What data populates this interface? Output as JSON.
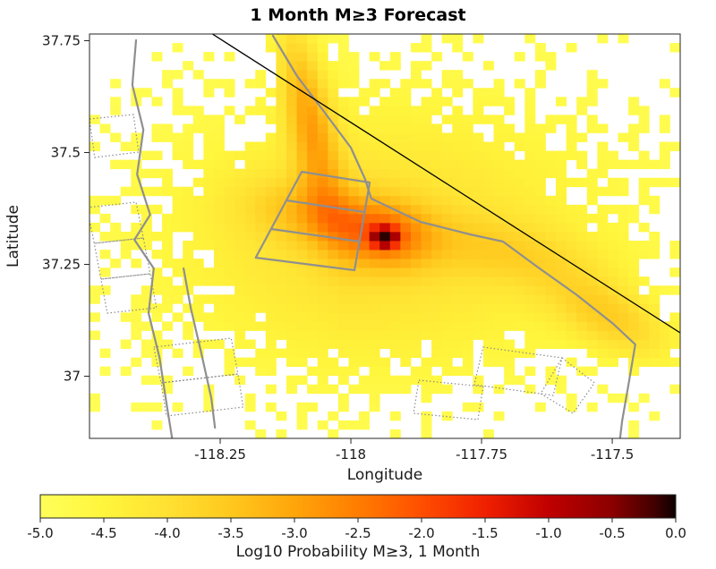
{
  "title": "1 Month M≥3 Forecast",
  "axes": {
    "xlabel": "Longitude",
    "ylabel": "Latitude",
    "x_range": [
      -118.5,
      -117.37
    ],
    "y_range": [
      36.861,
      37.765
    ],
    "x_ticks": [
      {
        "value": -118.25,
        "label": "-118.25"
      },
      {
        "value": -118.0,
        "label": "-118"
      },
      {
        "value": -117.75,
        "label": "-117.75"
      },
      {
        "value": -117.5,
        "label": "-117.5"
      }
    ],
    "y_ticks": [
      {
        "value": 37.75,
        "label": "37.75"
      },
      {
        "value": 37.5,
        "label": "37.5"
      },
      {
        "value": 37.25,
        "label": "37.25"
      },
      {
        "value": 37.0,
        "label": "37"
      }
    ]
  },
  "colorbar": {
    "label": "Log10 Probability M≥3, 1 Month",
    "range": [
      -5,
      0
    ],
    "tick_labels": [
      "-5.0",
      "-4.5",
      "-4.0",
      "-3.5",
      "-3.0",
      "-2.5",
      "-2.0",
      "-1.5",
      "-1.0",
      "-0.5",
      "0.0"
    ],
    "stops": [
      {
        "t": 0.0,
        "color": "#FFFF5A"
      },
      {
        "t": 0.1,
        "color": "#FFF53C"
      },
      {
        "t": 0.2,
        "color": "#FFE132"
      },
      {
        "t": 0.3,
        "color": "#FFC81E"
      },
      {
        "t": 0.4,
        "color": "#FFA50A"
      },
      {
        "t": 0.5,
        "color": "#FF7D00"
      },
      {
        "t": 0.6,
        "color": "#FF4E00"
      },
      {
        "t": 0.7,
        "color": "#F02000"
      },
      {
        "t": 0.8,
        "color": "#C00000"
      },
      {
        "t": 0.9,
        "color": "#8B0000"
      },
      {
        "t": 0.97,
        "color": "#3D0000"
      },
      {
        "t": 1.0,
        "color": "#0D0000"
      }
    ]
  },
  "chart_data": {
    "type": "heatmap",
    "title": "1 Month M≥3 Forecast",
    "xlabel": "Longitude",
    "ylabel": "Latitude",
    "value_label": "Log10 Probability M≥3, 1 Month",
    "x_range": [
      -118.5,
      -117.37
    ],
    "y_range": [
      36.861,
      37.765
    ],
    "cols": 57,
    "rows": 45,
    "value_range": [
      -5,
      0
    ],
    "hotspot": {
      "lon": -117.935,
      "lat": 37.311,
      "peak_log10_prob": -0.1
    },
    "field_components": [
      {
        "cx": -117.935,
        "cy": 37.311,
        "s_along": 0.016,
        "s_cross": 0.0145,
        "amp": 0.6,
        "angle_deg": 0
      },
      {
        "cx": -117.935,
        "cy": 37.311,
        "s_along": 0.062,
        "s_cross": 0.05,
        "amp": 0.28,
        "angle_deg": -10
      },
      {
        "cx": -117.96,
        "cy": 37.3,
        "s_along": 0.3,
        "s_cross": 0.22,
        "amp": 0.18,
        "angle_deg": 0
      },
      {
        "cx": -118.05,
        "cy": 37.36,
        "s_along": 0.1,
        "s_cross": 0.05,
        "amp": 0.2,
        "angle_deg": -12
      },
      {
        "cx": -118.08,
        "cy": 37.58,
        "s_along": 0.16,
        "s_cross": 0.032,
        "amp": 0.32,
        "angle_deg": 100
      },
      {
        "cx": -117.5,
        "cy": 37.13,
        "s_along": 0.1,
        "s_cross": 0.05,
        "amp": 0.22,
        "angle_deg": -35
      },
      {
        "cx": -117.7,
        "cy": 37.28,
        "s_along": 0.13,
        "s_cross": 0.05,
        "amp": 0.12,
        "angle_deg": -12
      },
      {
        "cx": -117.8,
        "cy": 37.4,
        "s_along": 0.45,
        "s_cross": 0.33,
        "amp": 0.04,
        "angle_deg": 0
      }
    ],
    "mask": {
      "offset": 0.008,
      "scale": 0.13,
      "floor": 0.012
    },
    "black_line": [
      [
        -118.265,
        37.765
      ],
      [
        -117.37,
        37.097
      ]
    ],
    "faults_gray_solid": [
      [
        [
          -118.411,
          37.751
        ],
        [
          -118.418,
          37.651
        ],
        [
          -118.397,
          37.551
        ],
        [
          -118.409,
          37.451
        ],
        [
          -118.384,
          37.361
        ],
        [
          -118.414,
          37.305
        ],
        [
          -118.377,
          37.241
        ],
        [
          -118.387,
          37.141
        ],
        [
          -118.366,
          37.041
        ],
        [
          -118.353,
          36.941
        ],
        [
          -118.342,
          36.861
        ]
      ],
      [
        [
          -118.32,
          37.241
        ],
        [
          -118.306,
          37.151
        ],
        [
          -118.286,
          37.051
        ],
        [
          -118.267,
          36.951
        ],
        [
          -118.26,
          36.885
        ]
      ],
      [
        [
          -118.149,
          37.761
        ],
        [
          -118.103,
          37.671
        ],
        [
          -118.051,
          37.591
        ],
        [
          -118.0,
          37.511
        ],
        [
          -117.973,
          37.441
        ],
        [
          -117.961,
          37.397
        ],
        [
          -117.867,
          37.345
        ],
        [
          -117.772,
          37.317
        ],
        [
          -117.709,
          37.301
        ],
        [
          -117.644,
          37.245
        ],
        [
          -117.567,
          37.181
        ],
        [
          -117.498,
          37.117
        ],
        [
          -117.456,
          37.071
        ],
        [
          -117.469,
          36.981
        ],
        [
          -117.481,
          36.901
        ],
        [
          -117.485,
          36.861
        ]
      ],
      [
        [
          -118.094,
          37.457
        ],
        [
          -117.964,
          37.433
        ],
        [
          -117.993,
          37.237
        ],
        [
          -118.182,
          37.265
        ],
        [
          -118.094,
          37.457
        ]
      ],
      [
        [
          -118.123,
          37.393
        ],
        [
          -117.974,
          37.367
        ]
      ],
      [
        [
          -118.152,
          37.329
        ],
        [
          -117.983,
          37.301
        ]
      ]
    ],
    "faults_gray_dotted": [
      [
        [
          -118.5,
          37.575
        ],
        [
          -118.416,
          37.585
        ],
        [
          -118.406,
          37.501
        ],
        [
          -118.49,
          37.489
        ]
      ],
      [
        [
          -118.505,
          37.377
        ],
        [
          -118.411,
          37.389
        ],
        [
          -118.397,
          37.309
        ],
        [
          -118.491,
          37.297
        ]
      ],
      [
        [
          -118.491,
          37.297
        ],
        [
          -118.397,
          37.309
        ],
        [
          -118.384,
          37.229
        ],
        [
          -118.478,
          37.217
        ]
      ],
      [
        [
          -118.478,
          37.217
        ],
        [
          -118.384,
          37.229
        ],
        [
          -118.372,
          37.153
        ],
        [
          -118.466,
          37.141
        ]
      ],
      [
        [
          -118.377,
          37.065
        ],
        [
          -118.229,
          37.085
        ],
        [
          -118.216,
          37.005
        ],
        [
          -118.363,
          36.985
        ]
      ],
      [
        [
          -118.363,
          36.985
        ],
        [
          -118.216,
          37.005
        ],
        [
          -118.206,
          36.931
        ],
        [
          -118.353,
          36.911
        ]
      ],
      [
        [
          -117.747,
          37.065
        ],
        [
          -117.596,
          37.041
        ],
        [
          -117.613,
          36.957
        ],
        [
          -117.764,
          36.981
        ]
      ],
      [
        [
          -117.596,
          37.041
        ],
        [
          -117.534,
          36.985
        ],
        [
          -117.575,
          36.917
        ],
        [
          -117.637,
          36.961
        ]
      ],
      [
        [
          -117.87,
          36.991
        ],
        [
          -117.747,
          36.977
        ],
        [
          -117.757,
          36.903
        ],
        [
          -117.88,
          36.917
        ]
      ]
    ]
  }
}
